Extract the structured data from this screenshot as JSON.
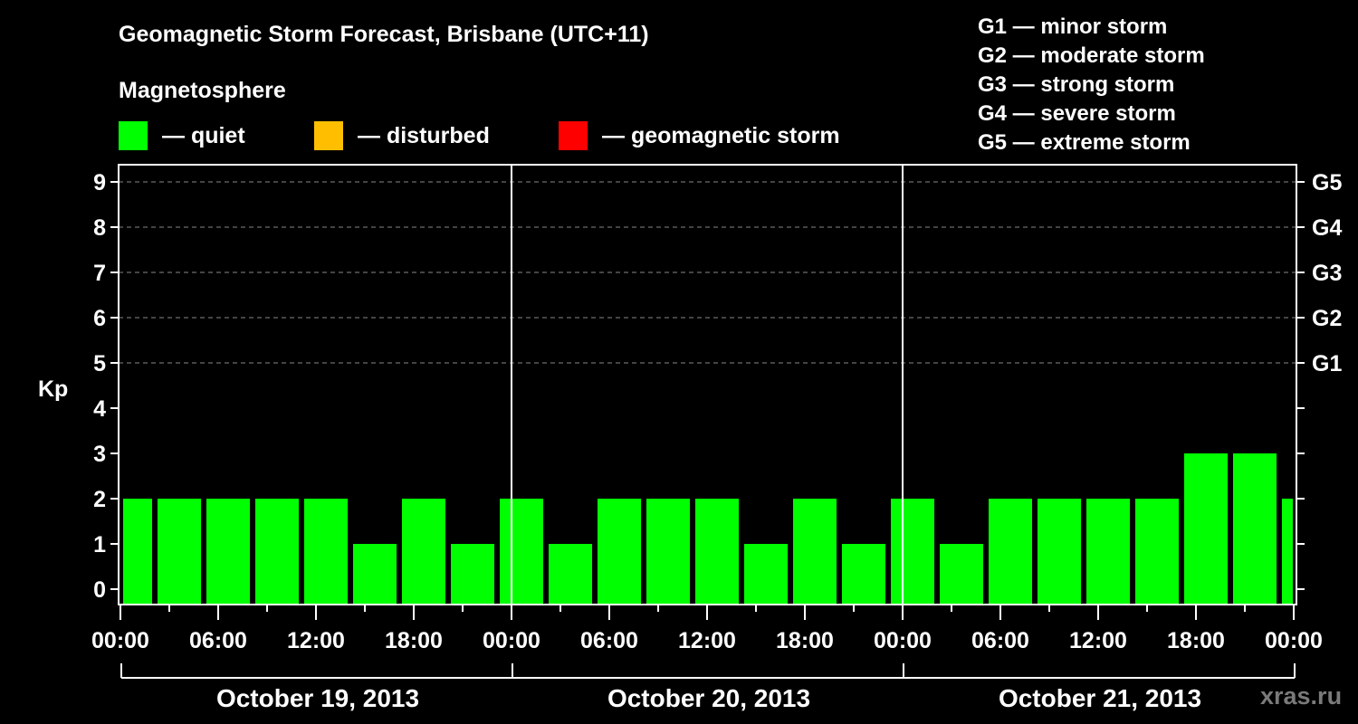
{
  "header": {
    "title": "Geomagnetic Storm Forecast, Brisbane (UTC+11)",
    "subtitle": "Magnetosphere"
  },
  "legend": [
    {
      "label": "— quiet",
      "color": "#00ff00"
    },
    {
      "label": "— disturbed",
      "color": "#ffbf00"
    },
    {
      "label": "— geomagnetic storm",
      "color": "#ff0000"
    }
  ],
  "storm_scale": [
    "G1 — minor storm",
    "G2 — moderate storm",
    "G3 — strong storm",
    "G4 — severe storm",
    "G5 — extreme storm"
  ],
  "watermark": "xras.ru",
  "chart_data": {
    "type": "bar",
    "title": "Geomagnetic Storm Forecast, Brisbane (UTC+11)",
    "xlabel": "",
    "ylabel": "Kp",
    "ylim": [
      0,
      9
    ],
    "yticks": [
      0,
      1,
      2,
      3,
      4,
      5,
      6,
      7,
      8,
      9
    ],
    "right_axis_labels": {
      "5": "G1",
      "6": "G2",
      "7": "G3",
      "8": "G4",
      "9": "G5"
    },
    "grid": "dashed horizontal at Kp 5-9",
    "interval_hours": 3,
    "xtick_labels": [
      "00:00",
      "06:00",
      "12:00",
      "18:00",
      "00:00",
      "06:00",
      "12:00",
      "18:00",
      "00:00",
      "06:00",
      "12:00",
      "18:00",
      "00:00"
    ],
    "days": [
      "October 19, 2013",
      "October 20, 2013",
      "October 21, 2013"
    ],
    "categories": [
      "Oct 19 00:00",
      "Oct 19 03:00",
      "Oct 19 06:00",
      "Oct 19 09:00",
      "Oct 19 12:00",
      "Oct 19 15:00",
      "Oct 19 18:00",
      "Oct 19 21:00",
      "Oct 20 00:00",
      "Oct 20 03:00",
      "Oct 20 06:00",
      "Oct 20 09:00",
      "Oct 20 12:00",
      "Oct 20 15:00",
      "Oct 20 18:00",
      "Oct 20 21:00",
      "Oct 21 00:00",
      "Oct 21 03:00",
      "Oct 21 06:00",
      "Oct 21 09:00",
      "Oct 21 12:00",
      "Oct 21 15:00",
      "Oct 21 18:00",
      "Oct 21 21:00",
      "Oct 22 00:00"
    ],
    "values": [
      2,
      2,
      2,
      2,
      2,
      1,
      2,
      1,
      2,
      1,
      2,
      2,
      2,
      1,
      2,
      1,
      2,
      1,
      2,
      2,
      2,
      2,
      3,
      3,
      2
    ],
    "colors": {
      "quiet": "#00ff00",
      "disturbed": "#ffbf00",
      "storm": "#ff0000"
    },
    "legend_position": "top"
  }
}
